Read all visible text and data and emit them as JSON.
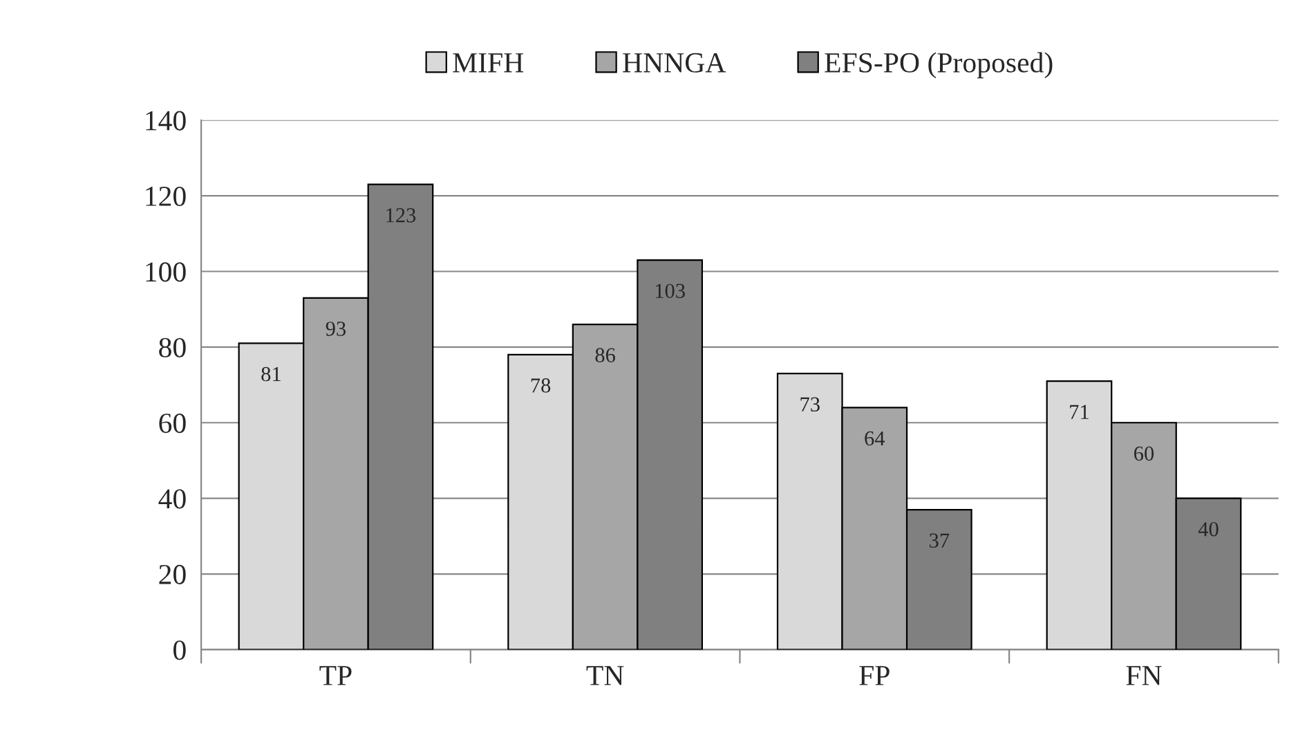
{
  "chart_data": {
    "type": "bar",
    "categories": [
      "TP",
      "TN",
      "FP",
      "FN"
    ],
    "series": [
      {
        "name": "MIFH",
        "color": "#d9d9d9",
        "values": [
          81,
          78,
          73,
          71
        ]
      },
      {
        "name": "HNNGA",
        "color": "#a6a6a6",
        "values": [
          93,
          86,
          64,
          60
        ]
      },
      {
        "name": "EFS-PO (Proposed)",
        "color": "#808080",
        "values": [
          123,
          103,
          37,
          40
        ]
      }
    ],
    "ylim": [
      0,
      140
    ],
    "yticks": [
      0,
      20,
      40,
      60,
      80,
      100,
      120,
      140
    ],
    "grid": "y",
    "legend": "top",
    "data_labels": true
  }
}
